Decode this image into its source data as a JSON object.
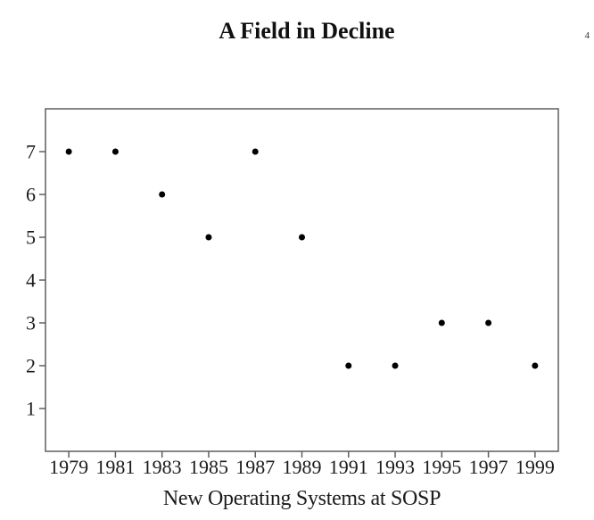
{
  "page": {
    "title": "A Field in Decline",
    "page_number": "4"
  },
  "chart_data": {
    "type": "scatter",
    "title": "A Field in Decline",
    "xlabel": "New Operating Systems at SOSP",
    "ylabel": "",
    "x": [
      1979,
      1981,
      1983,
      1985,
      1987,
      1989,
      1991,
      1993,
      1995,
      1997,
      1999
    ],
    "y": [
      7,
      7,
      6,
      5,
      7,
      5,
      2,
      2,
      3,
      3,
      2
    ],
    "x_ticks": [
      1979,
      1981,
      1983,
      1985,
      1987,
      1989,
      1991,
      1993,
      1995,
      1997,
      1999
    ],
    "y_ticks": [
      1,
      2,
      3,
      4,
      5,
      6,
      7
    ],
    "xlim": [
      1978,
      2000
    ],
    "ylim": [
      0,
      8
    ],
    "grid": false,
    "legend": null,
    "marker": "filled-circle",
    "marker_color": "#000000",
    "frame_color": "#5f5f5f",
    "text_color": "#1c1c1c",
    "background": "#ffffff"
  }
}
